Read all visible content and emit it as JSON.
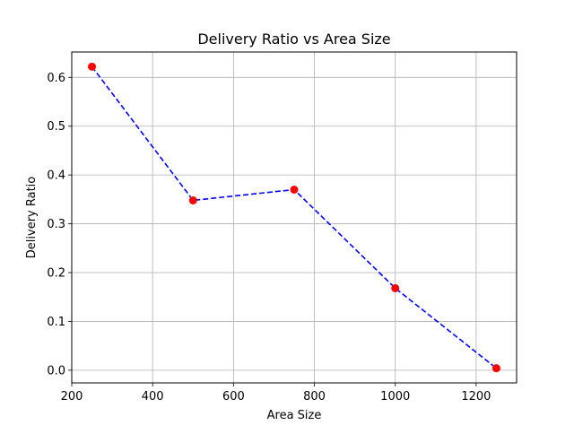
{
  "chart_data": {
    "type": "line",
    "title": "Delivery Ratio vs Area Size",
    "xlabel": "Area Size",
    "ylabel": "Delivery Ratio",
    "xlim": [
      200,
      1300
    ],
    "ylim": [
      -0.026,
      0.652
    ],
    "xticks": [
      200,
      400,
      600,
      800,
      1000,
      1200
    ],
    "yticks": [
      0.0,
      0.1,
      0.2,
      0.3,
      0.4,
      0.5,
      0.6
    ],
    "grid": true,
    "legend": false,
    "series": [
      {
        "x": [
          250,
          500,
          750,
          1000,
          1250
        ],
        "y": [
          0.622,
          0.348,
          0.37,
          0.168,
          0.004
        ],
        "line_color": "#0000ff",
        "line_style": "dashed",
        "marker_color": "#ff0000",
        "marker": "circle"
      }
    ]
  }
}
